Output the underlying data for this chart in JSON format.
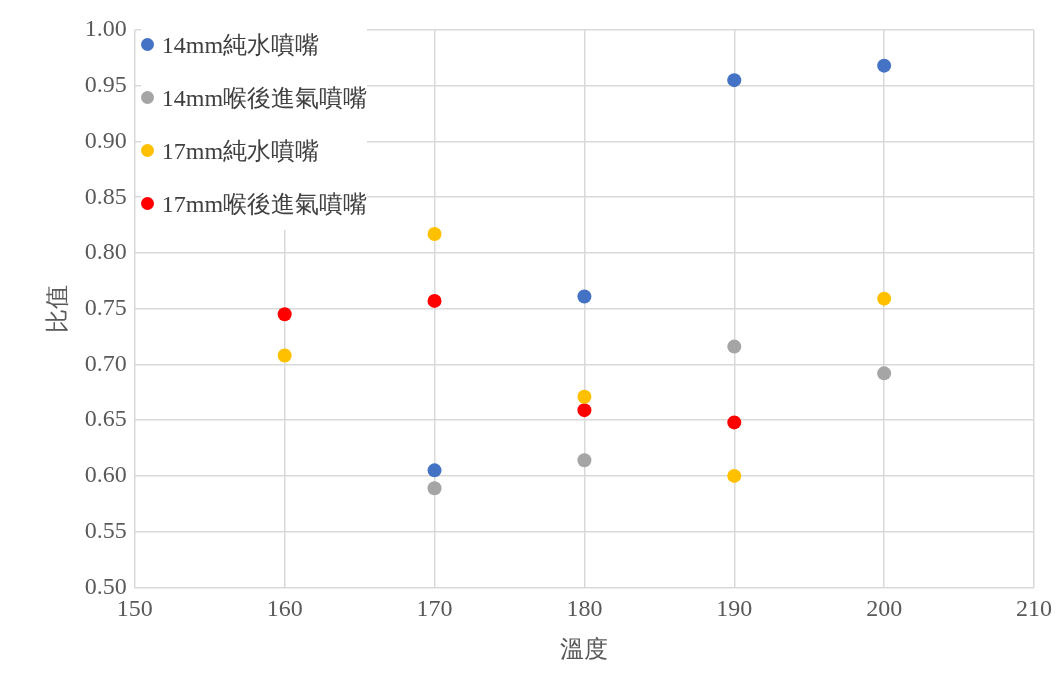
{
  "chart_data": {
    "type": "scatter",
    "xlabel": "溫度",
    "ylabel": "比值",
    "xlim": [
      150,
      210
    ],
    "xticks": [
      150,
      160,
      170,
      180,
      190,
      200,
      210
    ],
    "ylim": [
      0.5,
      1.0
    ],
    "yticks": [
      {
        "value": 0.5,
        "label": "0.50"
      },
      {
        "value": 0.55,
        "label": "0.55"
      },
      {
        "value": 0.6,
        "label": "0.60"
      },
      {
        "value": 0.65,
        "label": "0.65"
      },
      {
        "value": 0.7,
        "label": "0.70"
      },
      {
        "value": 0.75,
        "label": "0.75"
      },
      {
        "value": 0.8,
        "label": "0.80"
      },
      {
        "value": 0.85,
        "label": "0.85"
      },
      {
        "value": 0.9,
        "label": "0.90"
      },
      {
        "value": 0.95,
        "label": "0.95"
      },
      {
        "value": 1.0,
        "label": "1.00"
      }
    ],
    "grid": true,
    "legend": "top left",
    "marker": "circle",
    "series": [
      {
        "name": "14mm純水噴嘴",
        "color": "#4472c4",
        "x": [
          170,
          180,
          190,
          200
        ],
        "values": [
          0.605,
          0.761,
          0.955,
          0.968
        ]
      },
      {
        "name": "14mm喉後進氣噴嘴",
        "color": "#a5a5a5",
        "x": [
          170,
          180,
          190,
          200
        ],
        "values": [
          0.589,
          0.614,
          0.716,
          0.692
        ]
      },
      {
        "name": "17mm純水噴嘴",
        "color": "#ffc000",
        "x": [
          160,
          170,
          180,
          190,
          200
        ],
        "values": [
          0.708,
          0.817,
          0.671,
          0.6,
          0.759
        ]
      },
      {
        "name": "17mm喉後進氣噴嘴",
        "color": "#ff0000",
        "x": [
          160,
          170,
          180,
          190
        ],
        "values": [
          0.745,
          0.757,
          0.659,
          0.648
        ]
      }
    ]
  }
}
